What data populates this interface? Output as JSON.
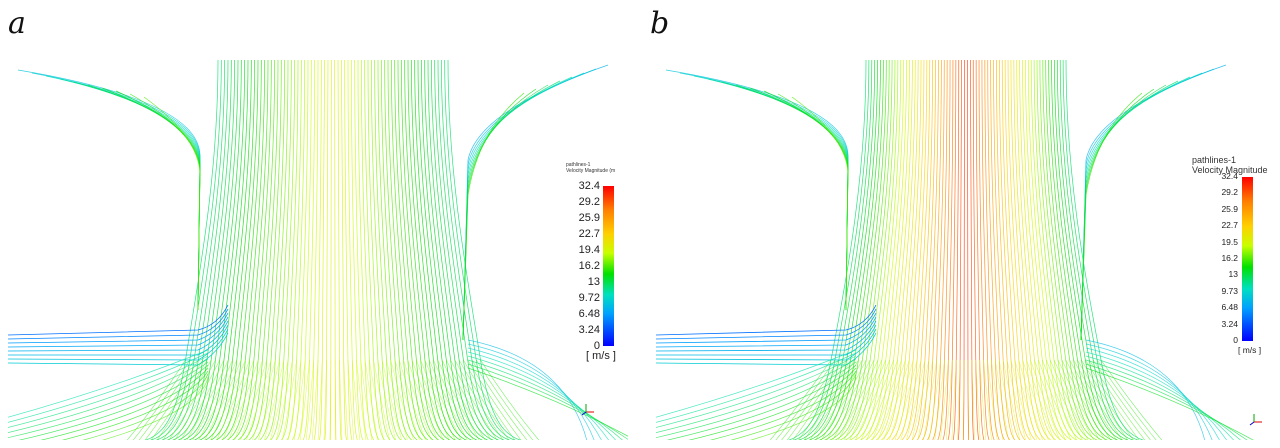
{
  "figure": {
    "panels": [
      {
        "letter": "a",
        "legend": {
          "title_line1": "pathlines-1",
          "title_line2": "Velocity Magnitude (m",
          "ticks": [
            "32.4",
            "29.2",
            "25.9",
            "22.7",
            "19.4",
            "16.2",
            "13",
            "9.72",
            "6.48",
            "3.24",
            "0"
          ],
          "unit": "[ m/s ]"
        },
        "peak_fraction": 0.62
      },
      {
        "letter": "b",
        "legend": {
          "title_line1": "pathlines-1",
          "title_line2": "Velocity Magnitude",
          "ticks": [
            "32.4",
            "29.2",
            "25.9",
            "22.7",
            "19.5",
            "16.2",
            "13",
            "9.73",
            "6.48",
            "3.24",
            "0"
          ],
          "unit": "[ m/s ]"
        },
        "peak_fraction": 0.95
      }
    ],
    "colormap": [
      "#0000ff",
      "#00a0ff",
      "#00e0c0",
      "#00e000",
      "#c8ff00",
      "#ffd000",
      "#ff8000",
      "#ff0000"
    ]
  }
}
